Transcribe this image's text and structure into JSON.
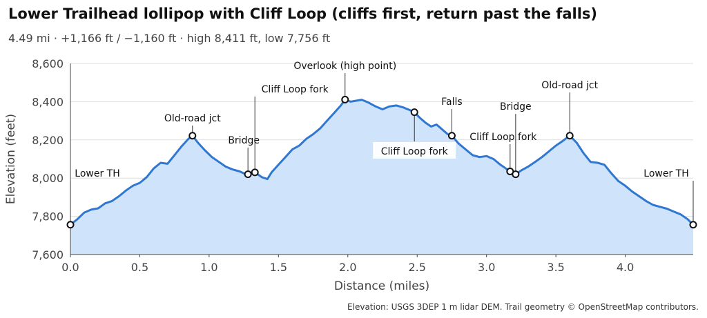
{
  "title": "Lower Trailhead lollipop with Cliff Loop (cliffs first, return past the falls)",
  "subtitle": "4.49 mi · +1,166 ft / −1,160 ft · high 8,411 ft, low 7,756 ft",
  "credit": "Elevation: USGS 3DEP 1 m lidar DEM.  Trail geometry © OpenStreetMap contributors.",
  "colors": {
    "line": "#2f77d0",
    "fill": "#cfe3fa",
    "grid": "#dddddd"
  },
  "chart_data": {
    "type": "area",
    "xlabel": "Distance (miles)",
    "ylabel": "Elevation (feet)",
    "xlim": [
      0,
      4.49
    ],
    "ylim": [
      7600,
      8600
    ],
    "x_ticks": [
      0.0,
      0.5,
      1.0,
      1.5,
      2.0,
      2.5,
      3.0,
      3.5,
      4.0
    ],
    "x_tick_labels": [
      "0.0",
      "0.5",
      "1.0",
      "1.5",
      "2.0",
      "2.5",
      "3.0",
      "3.5",
      "4.0"
    ],
    "y_ticks": [
      7600,
      7800,
      8000,
      8200,
      8400,
      8600
    ],
    "y_tick_labels": [
      "7,600",
      "7,800",
      "8,000",
      "8,200",
      "8,400",
      "8,600"
    ],
    "grid": "horizontal",
    "profile": {
      "x": [
        0.0,
        0.05,
        0.1,
        0.15,
        0.2,
        0.25,
        0.3,
        0.35,
        0.4,
        0.45,
        0.5,
        0.55,
        0.6,
        0.65,
        0.7,
        0.75,
        0.8,
        0.85,
        0.88,
        0.92,
        0.97,
        1.02,
        1.07,
        1.12,
        1.17,
        1.22,
        1.26,
        1.28,
        1.31,
        1.33,
        1.38,
        1.42,
        1.45,
        1.5,
        1.55,
        1.6,
        1.65,
        1.7,
        1.75,
        1.8,
        1.85,
        1.9,
        1.95,
        1.98,
        2.02,
        2.06,
        2.1,
        2.15,
        2.2,
        2.25,
        2.3,
        2.35,
        2.4,
        2.45,
        2.48,
        2.52,
        2.56,
        2.6,
        2.64,
        2.68,
        2.72,
        2.75,
        2.8,
        2.85,
        2.9,
        2.95,
        3.0,
        3.05,
        3.1,
        3.15,
        3.17,
        3.21,
        3.25,
        3.3,
        3.35,
        3.4,
        3.45,
        3.5,
        3.55,
        3.6,
        3.65,
        3.7,
        3.75,
        3.8,
        3.85,
        3.9,
        3.95,
        4.0,
        4.05,
        4.1,
        4.15,
        4.2,
        4.25,
        4.3,
        4.35,
        4.4,
        4.45,
        4.49
      ],
      "y": [
        7756,
        7785,
        7820,
        7835,
        7842,
        7868,
        7880,
        7905,
        7935,
        7960,
        7975,
        8005,
        8050,
        8080,
        8075,
        8120,
        8165,
        8205,
        8222,
        8185,
        8145,
        8110,
        8085,
        8060,
        8045,
        8035,
        8022,
        8020,
        8025,
        8030,
        8005,
        7995,
        8030,
        8070,
        8110,
        8150,
        8170,
        8205,
        8230,
        8260,
        8300,
        8340,
        8380,
        8411,
        8400,
        8405,
        8410,
        8395,
        8375,
        8360,
        8375,
        8380,
        8370,
        8355,
        8345,
        8315,
        8290,
        8270,
        8280,
        8255,
        8230,
        8222,
        8180,
        8150,
        8120,
        8110,
        8115,
        8100,
        8070,
        8045,
        8035,
        8020,
        8040,
        8060,
        8085,
        8110,
        8140,
        8170,
        8195,
        8222,
        8185,
        8130,
        8085,
        8080,
        8070,
        8025,
        7985,
        7960,
        7930,
        7905,
        7880,
        7860,
        7850,
        7840,
        7825,
        7810,
        7785,
        7756
      ]
    },
    "waypoints": [
      {
        "label": "Lower TH",
        "x": 0.0,
        "y": 7756,
        "label_pos": "above"
      },
      {
        "label": "Old-road jct",
        "x": 0.88,
        "y": 8222,
        "label_pos": "above"
      },
      {
        "label": "Bridge",
        "x": 1.28,
        "y": 8020,
        "label_pos": "above"
      },
      {
        "label": "Cliff Loop fork",
        "x": 1.33,
        "y": 8030,
        "label_pos": "above"
      },
      {
        "label": "Overlook (high point)",
        "x": 1.98,
        "y": 8411,
        "label_pos": "above"
      },
      {
        "label": "Cliff Loop fork",
        "x": 2.48,
        "y": 8345,
        "label_pos": "below"
      },
      {
        "label": "Falls",
        "x": 2.75,
        "y": 8222,
        "label_pos": "above"
      },
      {
        "label": "Cliff Loop fork",
        "x": 3.17,
        "y": 8035,
        "label_pos": "above"
      },
      {
        "label": "Bridge",
        "x": 3.21,
        "y": 8020,
        "label_pos": "above"
      },
      {
        "label": "Old-road jct",
        "x": 3.6,
        "y": 8222,
        "label_pos": "above"
      },
      {
        "label": "Lower TH",
        "x": 4.49,
        "y": 7756,
        "label_pos": "above"
      }
    ]
  }
}
